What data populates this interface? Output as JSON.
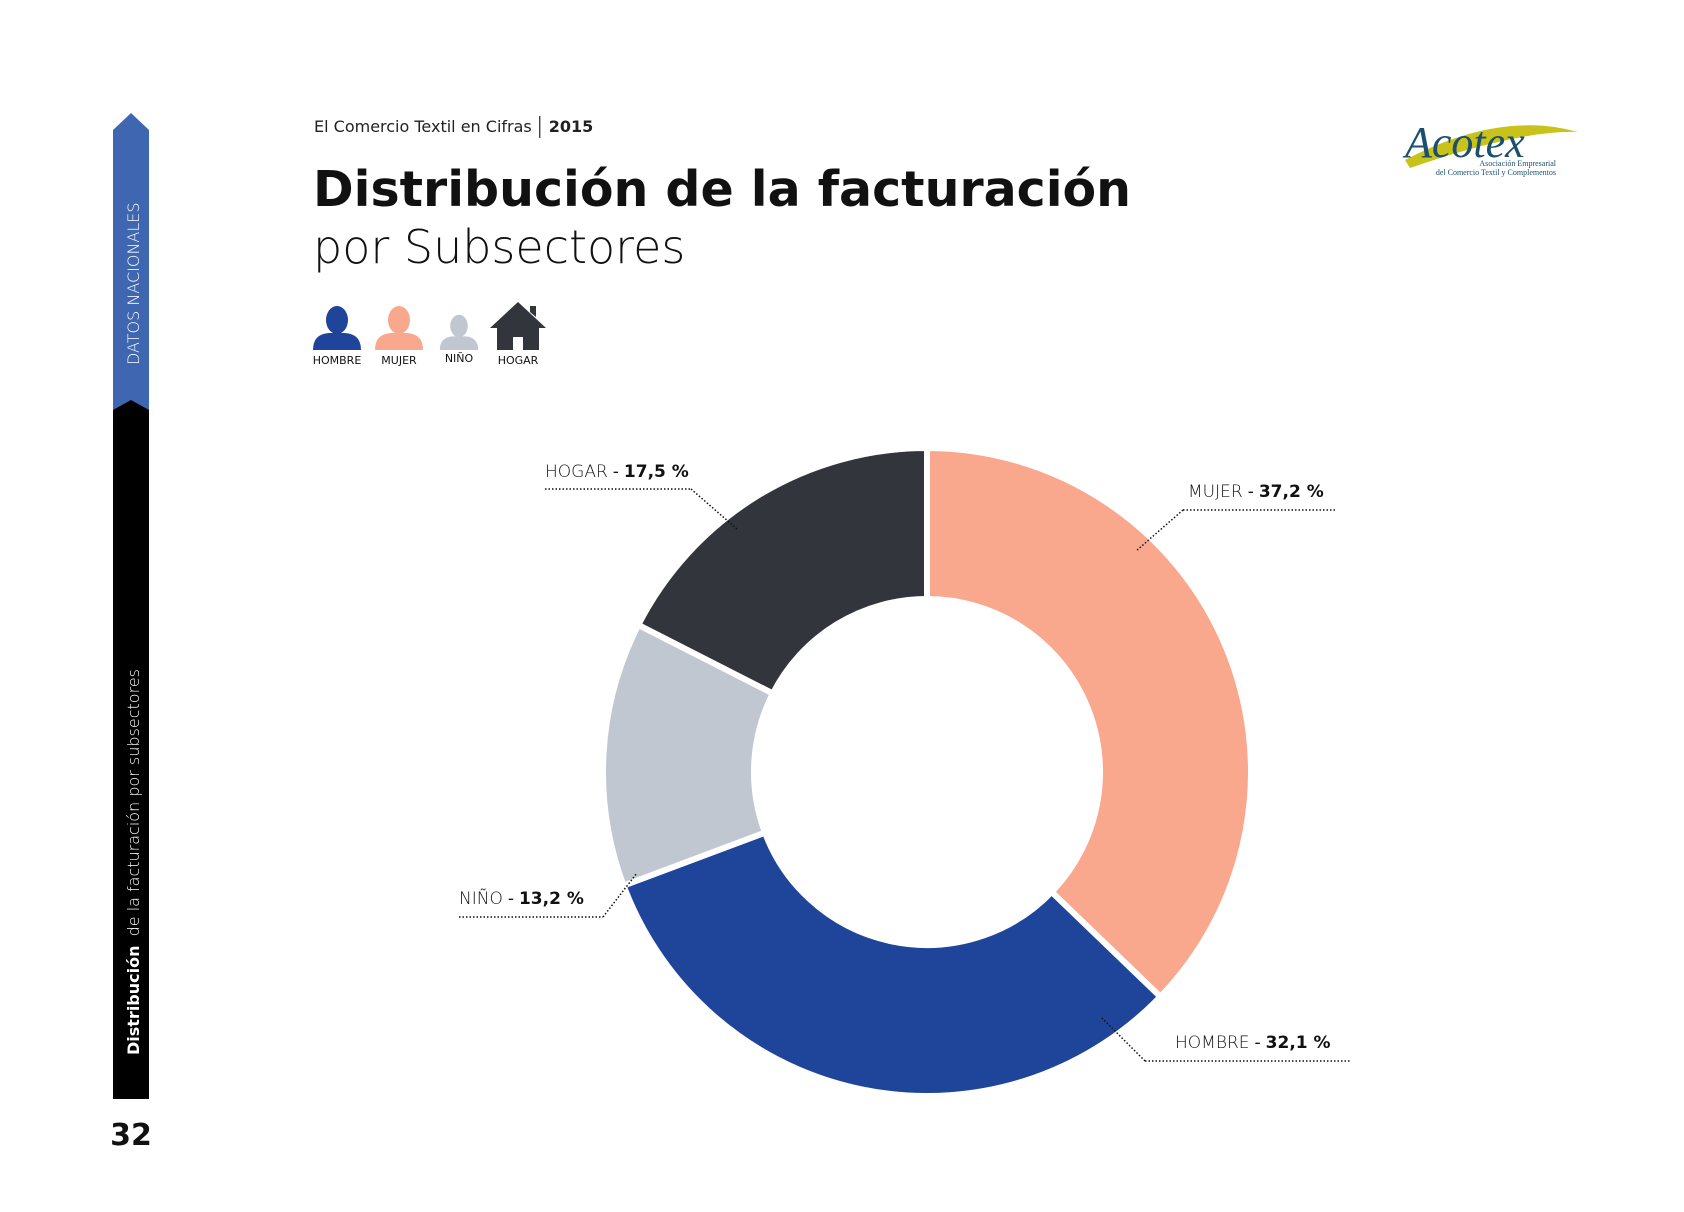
{
  "page": {
    "header": "El Comercio Textil en Cifras",
    "year": "2015",
    "side_tab": "DATOS NACIONALES",
    "side_label_bold": "Distribución",
    "side_label_rest": "de la facturación por subsectores",
    "page_number": "32",
    "logo": {
      "name": "Acotex",
      "line1": "Asociación Empresarial",
      "line2": "del Comercio Textil y Complementos"
    }
  },
  "chart_data": {
    "type": "pie",
    "donut": true,
    "title": "Distribución de la facturación",
    "subtitle": "por Subsectores",
    "categories": [
      "MUJER",
      "HOMBRE",
      "NIÑO",
      "HOGAR"
    ],
    "values": [
      37.2,
      32.1,
      13.2,
      17.5
    ],
    "value_labels": [
      "37,2 %",
      "32,1 %",
      "13,2 %",
      "17,5 %"
    ],
    "label_separator": "-",
    "colors": [
      "#f9a88e",
      "#1f459a",
      "#c0c7d1",
      "#32353c"
    ],
    "legend_order": [
      1,
      0,
      2,
      3
    ],
    "legend": "top-left"
  }
}
